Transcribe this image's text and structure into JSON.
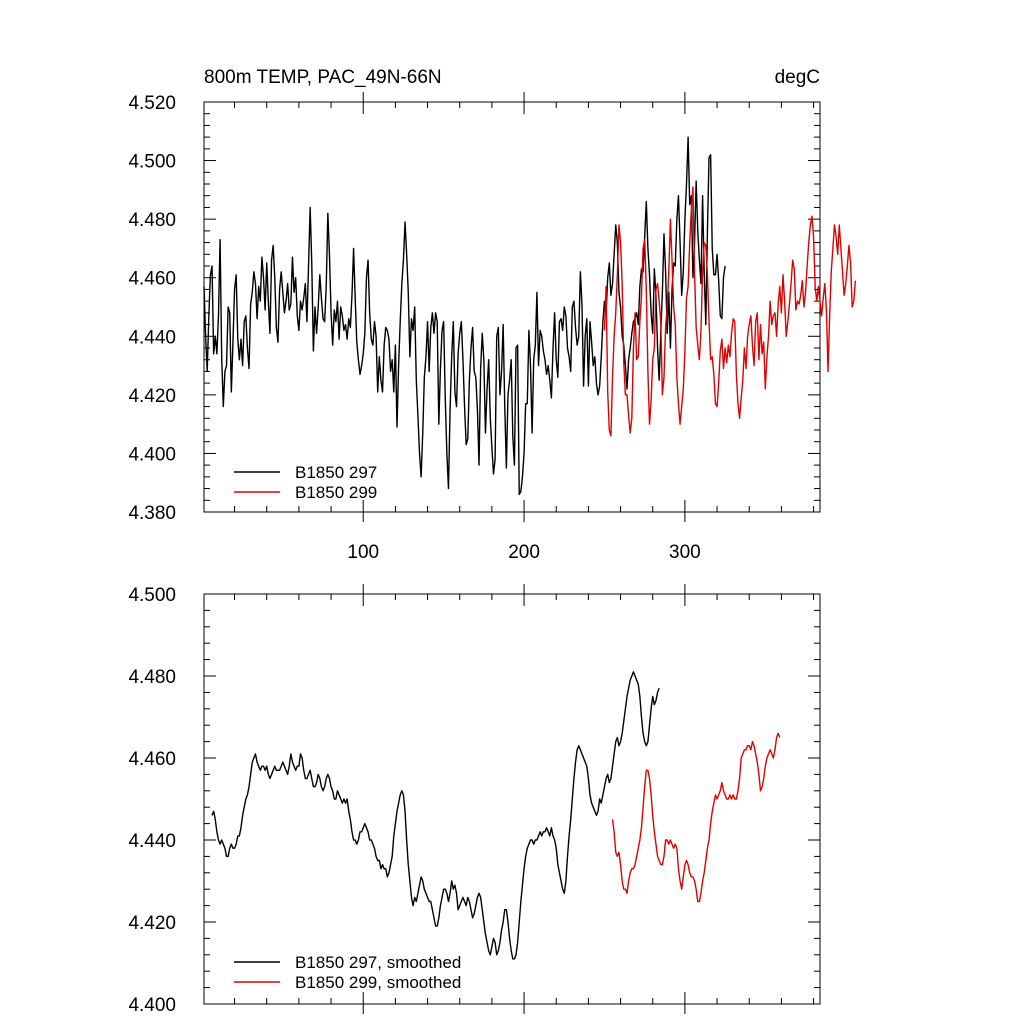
{
  "chart_data": [
    {
      "type": "line",
      "title": "800m TEMP, PAC_49N-66N",
      "units": "degC",
      "xlim": [
        1,
        384
      ],
      "ylim": [
        4.38,
        4.52
      ],
      "x_ticks": [
        100,
        200,
        300
      ],
      "y_ticks": [
        "4.380",
        "4.400",
        "4.420",
        "4.440",
        "4.460",
        "4.480",
        "4.500",
        "4.520"
      ],
      "legend_position": "bottom-left",
      "series": [
        {
          "name": "B1850 297",
          "color": "#000000",
          "x_start": 1,
          "x_step": 1,
          "values": [
            4.457,
            4.44,
            4.428,
            4.447,
            4.461,
            4.464,
            4.434,
            4.44,
            4.434,
            4.447,
            4.473,
            4.433,
            4.416,
            4.428,
            4.43,
            4.45,
            4.448,
            4.421,
            4.438,
            4.456,
            4.461,
            4.439,
            4.432,
            4.439,
            4.43,
            4.445,
            4.447,
            4.436,
            4.429,
            4.451,
            4.455,
            4.462,
            4.458,
            4.446,
            4.457,
            4.452,
            4.467,
            4.46,
            4.449,
            4.465,
            4.452,
            4.441,
            4.466,
            4.471,
            4.46,
            4.443,
            4.438,
            4.456,
            4.462,
            4.455,
            4.448,
            4.452,
            4.458,
            4.449,
            4.451,
            4.467,
            4.455,
            4.46,
            4.447,
            4.442,
            4.452,
            4.449,
            4.453,
            4.458,
            4.445,
            4.464,
            4.484,
            4.465,
            4.435,
            4.45,
            4.441,
            4.45,
            4.461,
            4.453,
            4.446,
            4.445,
            4.457,
            4.482,
            4.468,
            4.448,
            4.437,
            4.449,
            4.445,
            4.452,
            4.439,
            4.45,
            4.447,
            4.442,
            4.444,
            4.439,
            4.446,
            4.443,
            4.454,
            4.47,
            4.453,
            4.438,
            4.432,
            4.427,
            4.43,
            4.434,
            4.441,
            4.46,
            4.466,
            4.448,
            4.439,
            4.437,
            4.445,
            4.44,
            4.421,
            4.433,
            4.425,
            4.421,
            4.437,
            4.443,
            4.442,
            4.439,
            4.428,
            4.432,
            4.421,
            4.437,
            4.409,
            4.43,
            4.445,
            4.458,
            4.466,
            4.479,
            4.468,
            4.455,
            4.433,
            4.446,
            4.442,
            4.45,
            4.425,
            4.413,
            4.4,
            4.392,
            4.407,
            4.426,
            4.433,
            4.445,
            4.428,
            4.443,
            4.448,
            4.441,
            4.448,
            4.445,
            4.41,
            4.429,
            4.442,
            4.445,
            4.419,
            4.4,
            4.388,
            4.415,
            4.433,
            4.445,
            4.421,
            4.416,
            4.434,
            4.441,
            4.445,
            4.432,
            4.416,
            4.403,
            4.405,
            4.425,
            4.436,
            4.443,
            4.428,
            4.426,
            4.415,
            4.396,
            4.429,
            4.441,
            4.432,
            4.407,
            4.422,
            4.432,
            4.412,
            4.402,
            4.393,
            4.398,
            4.44,
            4.443,
            4.42,
            4.428,
            4.444,
            4.416,
            4.395,
            4.42,
            4.425,
            4.432,
            4.406,
            4.396,
            4.436,
            4.437,
            4.386,
            4.387,
            4.392,
            4.4,
            4.417,
            4.417,
            4.442,
            4.43,
            4.407,
            4.432,
            4.437,
            4.455,
            4.43,
            4.442,
            4.44,
            4.435,
            4.432,
            4.427,
            4.43,
            4.425,
            4.419,
            4.436,
            4.448,
            4.432,
            4.426,
            4.445,
            4.446,
            4.442,
            4.45,
            4.447,
            4.436,
            4.433,
            4.428,
            4.45,
            4.452,
            4.443,
            4.437,
            4.44,
            4.462,
            4.451,
            4.423,
            4.44,
            4.446,
            4.423,
            4.445,
            4.438,
            4.43,
            4.433,
            4.424,
            4.42,
            4.423,
            4.433,
            4.445,
            4.452,
            4.448,
            4.46,
            4.465,
            4.454,
            4.458,
            4.468,
            4.478,
            4.472,
            4.455,
            4.45,
            4.44,
            4.437,
            4.43,
            4.422,
            4.432,
            4.436,
            4.441,
            4.445,
            4.446,
            4.448,
            4.444,
            4.457,
            4.463,
            4.462,
            4.474,
            4.486,
            4.47,
            4.461,
            4.448,
            4.441,
            4.463,
            4.454,
            4.436,
            4.425,
            4.441,
            4.455,
            4.475,
            4.462,
            4.441,
            4.455,
            4.436,
            4.456,
            4.465,
            4.464,
            4.48,
            4.488,
            4.472,
            4.454,
            4.462,
            4.48,
            4.492,
            4.508,
            4.485,
            4.488,
            4.46,
            4.472,
            4.493,
            4.476,
            4.466,
            4.458,
            4.488,
            4.462,
            4.444,
            4.476,
            4.501,
            4.502,
            4.47,
            4.461,
            4.461,
            4.468,
            4.459,
            4.447,
            4.446,
            4.46,
            4.464
          ]
        },
        {
          "name": "B1850 299",
          "color": "#e00000",
          "x_start": 250,
          "x_step": 1,
          "values": [
            4.442,
            4.457,
            4.421,
            4.408,
            4.406,
            4.426,
            4.44,
            4.448,
            4.461,
            4.478,
            4.472,
            4.458,
            4.431,
            4.42,
            4.42,
            4.413,
            4.407,
            4.412,
            4.436,
            4.448,
            4.432,
            4.433,
            4.445,
            4.454,
            4.47,
            4.473,
            4.456,
            4.428,
            4.41,
            4.418,
            4.432,
            4.436,
            4.456,
            4.458,
            4.452,
            4.445,
            4.42,
            4.426,
            4.443,
            4.45,
            4.462,
            4.48,
            4.466,
            4.45,
            4.444,
            4.426,
            4.417,
            4.41,
            4.416,
            4.422,
            4.435,
            4.453,
            4.457,
            4.472,
            4.483,
            4.491,
            4.462,
            4.443,
            4.437,
            4.432,
            4.442,
            4.462,
            4.472,
            4.471,
            4.461,
            4.445,
            4.432,
            4.433,
            4.427,
            4.417,
            4.416,
            4.424,
            4.435,
            4.439,
            4.429,
            4.436,
            4.431,
            4.437,
            4.433,
            4.441,
            4.446,
            4.445,
            4.427,
            4.417,
            4.412,
            4.419,
            4.425,
            4.436,
            4.429,
            4.44,
            4.444,
            4.447,
            4.437,
            4.43,
            4.445,
            4.448,
            4.432,
            4.444,
            4.434,
            4.438,
            4.422,
            4.433,
            4.44,
            4.452,
            4.444,
            4.447,
            4.448,
            4.44,
            4.451,
            4.457,
            4.448,
            4.461,
            4.452,
            4.44,
            4.445,
            4.451,
            4.458,
            4.466,
            4.463,
            4.449,
            4.452,
            4.451,
            4.454,
            4.459,
            4.45,
            4.455,
            4.464,
            4.472,
            4.478,
            4.481,
            4.474,
            4.457,
            4.452,
            4.457,
            4.452,
            4.447,
            4.453,
            4.458,
            4.449,
            4.428,
            4.447,
            4.462,
            4.47,
            4.478,
            4.474,
            4.468,
            4.478,
            4.47,
            4.462,
            4.454,
            4.458,
            4.464,
            4.471,
            4.465,
            4.45,
            4.452,
            4.459
          ]
        }
      ]
    },
    {
      "type": "line",
      "xlim": [
        1,
        384
      ],
      "ylim": [
        4.4,
        4.5
      ],
      "x_ticks": [
        100,
        200,
        300
      ],
      "y_ticks": [
        "4.400",
        "4.420",
        "4.440",
        "4.460",
        "4.480",
        "4.500"
      ],
      "legend_position": "bottom-left",
      "series": [
        {
          "name": "B1850 297, smoothed",
          "color": "#000000",
          "x_start": 6,
          "x_step": 1,
          "values": [
            4.446,
            4.447,
            4.445,
            4.442,
            4.44,
            4.439,
            4.44,
            4.439,
            4.438,
            4.436,
            4.436,
            4.438,
            4.439,
            4.438,
            4.438,
            4.439,
            4.441,
            4.441,
            4.443,
            4.446,
            4.448,
            4.45,
            4.451,
            4.453,
            4.456,
            4.459,
            4.46,
            4.461,
            4.459,
            4.458,
            4.457,
            4.458,
            4.458,
            4.457,
            4.458,
            4.456,
            4.455,
            4.456,
            4.457,
            4.458,
            4.457,
            4.457,
            4.457,
            4.458,
            4.459,
            4.458,
            4.457,
            4.456,
            4.458,
            4.461,
            4.459,
            4.458,
            4.457,
            4.458,
            4.458,
            4.461,
            4.46,
            4.457,
            4.455,
            4.455,
            4.456,
            4.457,
            4.455,
            4.453,
            4.453,
            4.454,
            4.456,
            4.455,
            4.453,
            4.452,
            4.453,
            4.455,
            4.456,
            4.455,
            4.453,
            4.452,
            4.45,
            4.45,
            4.452,
            4.451,
            4.45,
            4.449,
            4.45,
            4.449,
            4.45,
            4.447,
            4.445,
            4.442,
            4.44,
            4.44,
            4.439,
            4.44,
            4.442,
            4.442,
            4.443,
            4.444,
            4.443,
            4.442,
            4.44,
            4.44,
            4.439,
            4.438,
            4.436,
            4.435,
            4.435,
            4.433,
            4.434,
            4.433,
            4.433,
            4.431,
            4.432,
            4.434,
            4.436,
            4.441,
            4.444,
            4.447,
            4.449,
            4.451,
            4.452,
            4.451,
            4.447,
            4.44,
            4.434,
            4.43,
            4.426,
            4.424,
            4.426,
            4.425,
            4.427,
            4.429,
            4.431,
            4.43,
            4.428,
            4.427,
            4.426,
            4.425,
            4.425,
            4.423,
            4.421,
            4.419,
            4.419,
            4.421,
            4.424,
            4.426,
            4.428,
            4.428,
            4.427,
            4.425,
            4.427,
            4.43,
            4.428,
            4.429,
            4.427,
            4.423,
            4.424,
            4.425,
            4.426,
            4.425,
            4.424,
            4.426,
            4.425,
            4.423,
            4.421,
            4.422,
            4.424,
            4.426,
            4.427,
            4.426,
            4.423,
            4.42,
            4.417,
            4.415,
            4.413,
            4.412,
            4.414,
            4.416,
            4.415,
            4.412,
            4.413,
            4.415,
            4.418,
            4.42,
            4.423,
            4.423,
            4.42,
            4.416,
            4.413,
            4.411,
            4.411,
            4.412,
            4.415,
            4.42,
            4.425,
            4.429,
            4.433,
            4.436,
            4.438,
            4.439,
            4.44,
            4.44,
            4.439,
            4.44,
            4.44,
            4.441,
            4.442,
            4.441,
            4.442,
            4.442,
            4.443,
            4.442,
            4.441,
            4.443,
            4.441,
            4.44,
            4.438,
            4.434,
            4.432,
            4.43,
            4.428,
            4.427,
            4.43,
            4.436,
            4.441,
            4.445,
            4.45,
            4.455,
            4.459,
            4.462,
            4.463,
            4.462,
            4.461,
            4.46,
            4.459,
            4.458,
            4.455,
            4.451,
            4.449,
            4.448,
            4.447,
            4.446,
            4.447,
            4.45,
            4.449,
            4.451,
            4.453,
            4.455,
            4.456,
            4.454,
            4.455,
            4.458,
            4.461,
            4.464,
            4.465,
            4.463,
            4.464,
            4.466,
            4.469,
            4.472,
            4.475,
            4.477,
            4.479,
            4.48,
            4.481,
            4.48,
            4.479,
            4.478,
            4.475,
            4.47,
            4.466,
            4.464,
            4.463,
            4.464,
            4.468,
            4.472,
            4.475,
            4.473,
            4.474,
            4.476,
            4.477
          ]
        },
        {
          "name": "B1850 299, smoothed",
          "color": "#e00000",
          "x_start": 255,
          "x_step": 1,
          "values": [
            4.445,
            4.442,
            4.437,
            4.436,
            4.437,
            4.434,
            4.43,
            4.428,
            4.428,
            4.427,
            4.43,
            4.432,
            4.433,
            4.433,
            4.434,
            4.436,
            4.438,
            4.44,
            4.443,
            4.448,
            4.453,
            4.457,
            4.457,
            4.455,
            4.451,
            4.446,
            4.442,
            4.439,
            4.436,
            4.435,
            4.434,
            4.434,
            4.436,
            4.44,
            4.44,
            4.439,
            4.44,
            4.439,
            4.438,
            4.439,
            4.438,
            4.433,
            4.43,
            4.428,
            4.431,
            4.434,
            4.435,
            4.434,
            4.432,
            4.431,
            4.431,
            4.43,
            4.428,
            4.425,
            4.425,
            4.427,
            4.43,
            4.432,
            4.435,
            4.438,
            4.44,
            4.444,
            4.447,
            4.449,
            4.451,
            4.45,
            4.451,
            4.452,
            4.454,
            4.452,
            4.451,
            4.45,
            4.45,
            4.451,
            4.45,
            4.451,
            4.45,
            4.45,
            4.452,
            4.455,
            4.46,
            4.461,
            4.462,
            4.462,
            4.463,
            4.463,
            4.462,
            4.464,
            4.463,
            4.461,
            4.459,
            4.456,
            4.452,
            4.453,
            4.455,
            4.458,
            4.46,
            4.461,
            4.462,
            4.461,
            4.46,
            4.462,
            4.465,
            4.466,
            4.465
          ]
        }
      ]
    }
  ]
}
